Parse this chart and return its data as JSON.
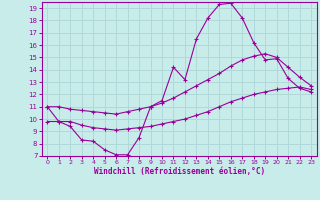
{
  "xlabel": "Windchill (Refroidissement éolien,°C)",
  "bg_color": "#c8ecea",
  "line_color": "#990099",
  "grid_color": "#b0d8d8",
  "xlim": [
    -0.5,
    23.5
  ],
  "ylim": [
    7,
    19.5
  ],
  "yticks": [
    7,
    8,
    9,
    10,
    11,
    12,
    13,
    14,
    15,
    16,
    17,
    18,
    19
  ],
  "xticks": [
    0,
    1,
    2,
    3,
    4,
    5,
    6,
    7,
    8,
    9,
    10,
    11,
    12,
    13,
    14,
    15,
    16,
    17,
    18,
    19,
    20,
    21,
    22,
    23
  ],
  "series1_x": [
    0,
    1,
    2,
    3,
    4,
    5,
    6,
    7,
    8,
    9,
    10,
    11,
    12,
    13,
    14,
    15,
    16,
    17,
    18,
    19,
    20,
    21,
    22,
    23
  ],
  "series1_y": [
    11.0,
    9.8,
    9.4,
    8.3,
    8.2,
    7.5,
    7.1,
    7.1,
    8.5,
    11.0,
    11.5,
    14.2,
    13.2,
    16.5,
    18.2,
    19.3,
    19.4,
    18.2,
    16.2,
    14.8,
    14.9,
    13.3,
    12.5,
    12.2
  ],
  "series2_x": [
    0,
    1,
    2,
    3,
    4,
    5,
    6,
    7,
    8,
    9,
    10,
    11,
    12,
    13,
    14,
    15,
    16,
    17,
    18,
    19,
    20,
    21,
    22,
    23
  ],
  "series2_y": [
    9.8,
    9.8,
    9.8,
    9.5,
    9.3,
    9.2,
    9.1,
    9.2,
    9.3,
    9.4,
    9.6,
    9.8,
    10.0,
    10.3,
    10.6,
    11.0,
    11.4,
    11.7,
    12.0,
    12.2,
    12.4,
    12.5,
    12.6,
    12.4
  ],
  "series3_x": [
    0,
    1,
    2,
    3,
    4,
    5,
    6,
    7,
    8,
    9,
    10,
    11,
    12,
    13,
    14,
    15,
    16,
    17,
    18,
    19,
    20,
    21,
    22,
    23
  ],
  "series3_y": [
    11.0,
    11.0,
    10.8,
    10.7,
    10.6,
    10.5,
    10.4,
    10.6,
    10.8,
    11.0,
    11.3,
    11.7,
    12.2,
    12.7,
    13.2,
    13.7,
    14.3,
    14.8,
    15.1,
    15.3,
    15.0,
    14.2,
    13.4,
    12.7
  ]
}
